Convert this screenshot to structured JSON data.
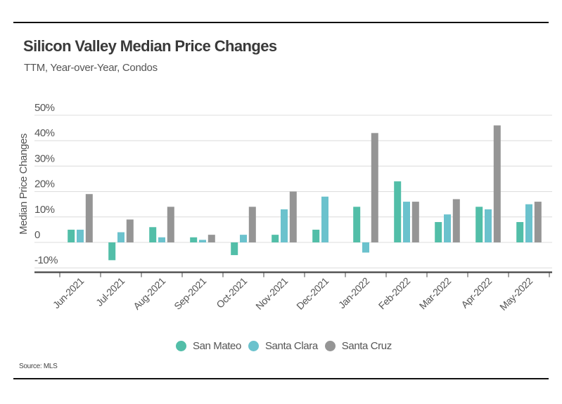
{
  "header": {
    "title": "Silicon Valley Median Price Changes",
    "subtitle": "TTM, Year-over-Year, Condos"
  },
  "footer": {
    "source": "Source:  MLS"
  },
  "chart_data": {
    "type": "bar",
    "title": "Silicon Valley Median Price Changes",
    "subtitle": "TTM, Year-over-Year, Condos",
    "xlabel": "",
    "ylabel": "Median Price Changes",
    "ylim": [
      -13,
      52
    ],
    "yticks": [
      -10,
      0,
      10,
      20,
      30,
      40,
      50
    ],
    "ytick_labels": [
      "-10%",
      "0",
      "10%",
      "20%",
      "30%",
      "40%",
      "50%"
    ],
    "grid": true,
    "legend_position": "bottom-center",
    "categories": [
      "Jun-2021",
      "Jul-2021",
      "Aug-2021",
      "Sep-2021",
      "Oct-2021",
      "Nov-2021",
      "Dec-2021",
      "Jan-2022",
      "Feb-2022",
      "Mar-2022",
      "Apr-2022",
      "May-2022"
    ],
    "series": [
      {
        "name": "San Mateo",
        "color": "#52bea8",
        "values": [
          5,
          -7,
          6,
          2,
          -5,
          3,
          5,
          14,
          24,
          8,
          14,
          8
        ]
      },
      {
        "name": "Santa Clara",
        "color": "#6bc2cd",
        "values": [
          5,
          4,
          2,
          1,
          3,
          13,
          18,
          -4,
          16,
          11,
          13,
          15
        ]
      },
      {
        "name": "Santa Cruz",
        "color": "#959595",
        "values": [
          19,
          9,
          14,
          3,
          14,
          20,
          0,
          43,
          16,
          17,
          46,
          16
        ]
      }
    ]
  }
}
